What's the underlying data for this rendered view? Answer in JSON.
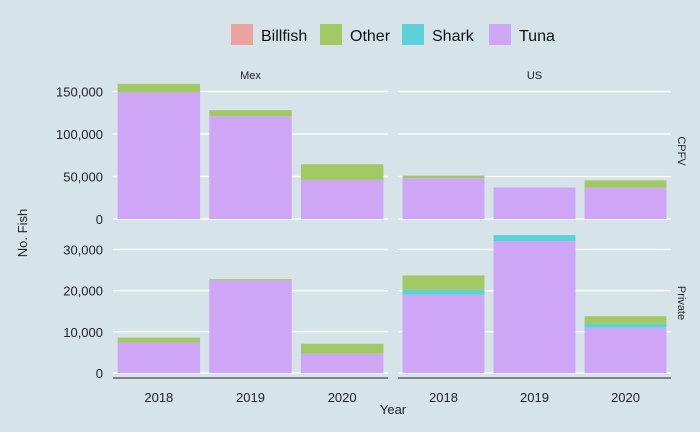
{
  "chart_data": {
    "type": "bar",
    "stacked": true,
    "xlabel": "Year",
    "ylabel": "No. Fish",
    "categories": [
      "2018",
      "2019",
      "2020"
    ],
    "species": [
      "Billfish",
      "Other",
      "Shark",
      "Tuna"
    ],
    "stack_order": [
      "Tuna",
      "Shark",
      "Other",
      "Billfish"
    ],
    "colors": {
      "Billfish": "#eca3a0",
      "Other": "#a3c964",
      "Shark": "#5cd1d7",
      "Tuna": "#cfa6f5"
    },
    "legend": {
      "position": "top"
    },
    "grid": true,
    "columns": [
      "Mex",
      "US"
    ],
    "rows": [
      {
        "label": "CPFV",
        "ylim": [
          0,
          160000
        ],
        "ticks": [
          0,
          50000,
          100000,
          150000
        ],
        "tick_labels": [
          "0",
          "50,000",
          "100,000",
          "150,000"
        ]
      },
      {
        "label": "Private",
        "ylim": [
          0,
          34000
        ],
        "ticks": [
          0,
          10000,
          20000,
          30000
        ],
        "tick_labels": [
          "0",
          "10,000",
          "20,000",
          "30,000"
        ]
      }
    ],
    "panels": [
      {
        "row": "CPFV",
        "column": "Mex",
        "series": [
          {
            "name": "Billfish",
            "values": [
              0,
              0,
              0
            ]
          },
          {
            "name": "Other",
            "values": [
              10000,
              7000,
              18500
            ]
          },
          {
            "name": "Shark",
            "values": [
              0,
              0,
              0
            ]
          },
          {
            "name": "Tuna",
            "values": [
              149000,
              121000,
              46000
            ]
          }
        ]
      },
      {
        "row": "CPFV",
        "column": "US",
        "series": [
          {
            "name": "Billfish",
            "values": [
              0,
              0,
              0
            ]
          },
          {
            "name": "Other",
            "values": [
              3000,
              0,
              8500
            ]
          },
          {
            "name": "Shark",
            "values": [
              0,
              0,
              0
            ]
          },
          {
            "name": "Tuna",
            "values": [
              48000,
              37000,
              37000
            ]
          }
        ]
      },
      {
        "row": "Private",
        "column": "Mex",
        "series": [
          {
            "name": "Billfish",
            "values": [
              0,
              0,
              0
            ]
          },
          {
            "name": "Other",
            "values": [
              1200,
              300,
              2400
            ]
          },
          {
            "name": "Shark",
            "values": [
              0,
              0,
              0
            ]
          },
          {
            "name": "Tuna",
            "values": [
              7400,
              22500,
              4700
            ]
          }
        ]
      },
      {
        "row": "Private",
        "column": "US",
        "series": [
          {
            "name": "Billfish",
            "values": [
              0,
              0,
              0
            ]
          },
          {
            "name": "Other",
            "values": [
              3500,
              0,
              1800
            ]
          },
          {
            "name": "Shark",
            "values": [
              1200,
              1500,
              1000
            ]
          },
          {
            "name": "Tuna",
            "values": [
              19000,
              32000,
              11000
            ]
          }
        ]
      }
    ]
  }
}
